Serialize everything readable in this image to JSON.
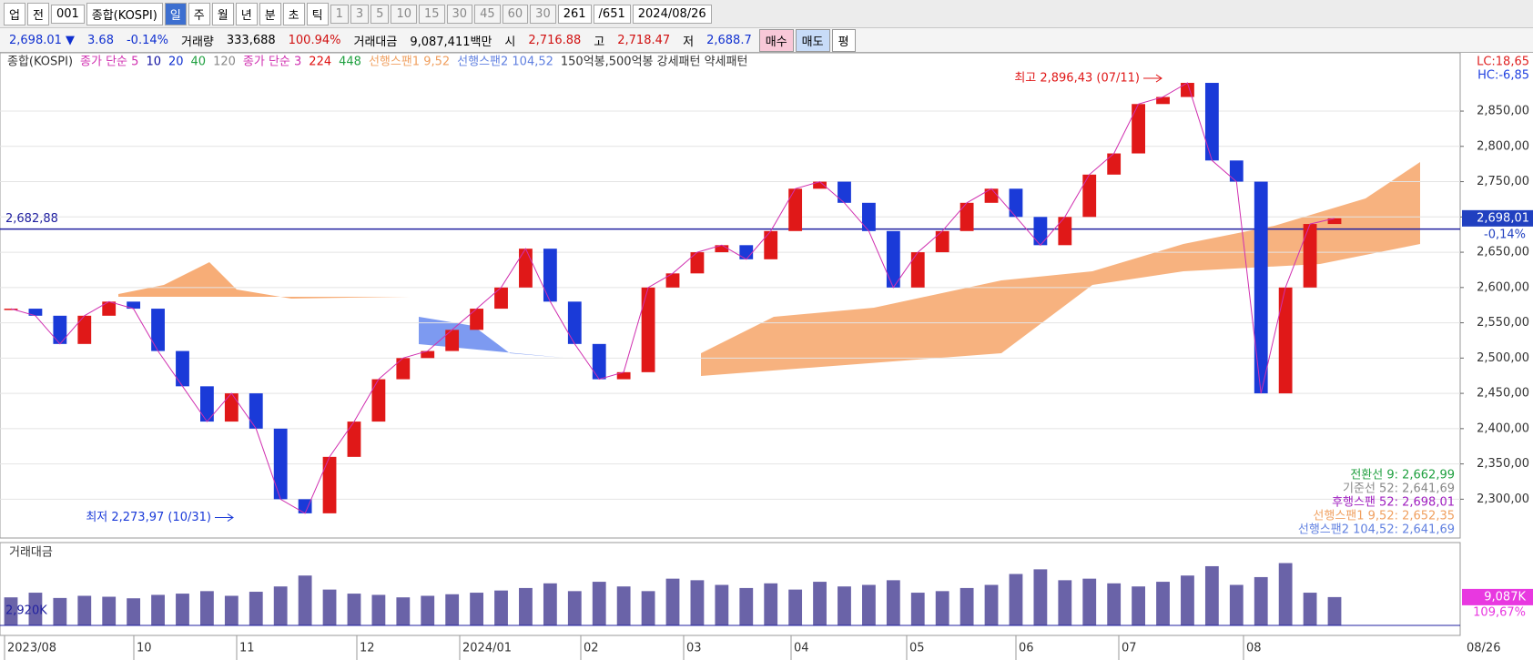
{
  "toolbar": {
    "items": [
      "업",
      "전",
      "001",
      "종합(KOSPI)",
      "일",
      "주",
      "월",
      "년",
      "분",
      "초",
      "틱",
      "1",
      "3",
      "5",
      "10",
      "15",
      "30",
      "45",
      "60",
      "30",
      "261",
      "/651",
      "2024/08/26"
    ]
  },
  "info": [
    {
      "text": "2,698.01 ▼",
      "color": "#1030d0"
    },
    {
      "text": "3.68",
      "color": "#1030d0"
    },
    {
      "text": "-0.14%",
      "color": "#1030d0"
    },
    {
      "text": "거래량",
      "color": "#000000"
    },
    {
      "text": "333,688",
      "color": "#000000"
    },
    {
      "text": "100.94%",
      "color": "#d01010"
    },
    {
      "text": "거래대금",
      "color": "#000000"
    },
    {
      "text": "9,087,411백만",
      "color": "#000000"
    },
    {
      "text": "시",
      "color": "#000000"
    },
    {
      "text": "2,716.88",
      "color": "#d01010"
    },
    {
      "text": "고",
      "color": "#000000"
    },
    {
      "text": "2,718.47",
      "color": "#d01010"
    },
    {
      "text": "저",
      "color": "#000000"
    },
    {
      "text": "2,688.7",
      "color": "#1030d0"
    },
    {
      "text": "매수",
      "color": "#000000"
    },
    {
      "text": "매도",
      "color": "#000000"
    },
    {
      "text": "평",
      "color": "#000000"
    }
  ],
  "legend": [
    {
      "text": "종합(KOSPI)",
      "color": "#333333"
    },
    {
      "text": "종가 단순 5",
      "color": "#d030b0"
    },
    {
      "text": "10",
      "color": "#1010a0"
    },
    {
      "text": "20",
      "color": "#1030d0"
    },
    {
      "text": "40",
      "color": "#20a040"
    },
    {
      "text": "120",
      "color": "#888888"
    },
    {
      "text": "종가 단순 3",
      "color": "#d030b0"
    },
    {
      "text": "224",
      "color": "#e01010"
    },
    {
      "text": "448",
      "color": "#20a040"
    },
    {
      "text": "선행스팬1 9,52",
      "color": "#f0a060"
    },
    {
      "text": "선행스팬2 104,52",
      "color": "#6080e0"
    },
    {
      "text": "150억봉,500억봉 강세패턴  약세패턴",
      "color": "#333333"
    }
  ],
  "chart": {
    "lc": "LC:18,65",
    "hc": "HC:-6,85",
    "ylim": [
      2245,
      2921
    ],
    "yticks": [
      {
        "value": 2300,
        "label": "2,300,00"
      },
      {
        "value": 2350,
        "label": "2,350,00"
      },
      {
        "value": 2400,
        "label": "2,400,00"
      },
      {
        "value": 2450,
        "label": "2,450,00"
      },
      {
        "value": 2500,
        "label": "2,500,00"
      },
      {
        "value": 2550,
        "label": "2,550,00"
      },
      {
        "value": 2600,
        "label": "2,600,00"
      },
      {
        "value": 2650,
        "label": "2,650,00"
      },
      {
        "value": 2700,
        "label": "2,700,00"
      },
      {
        "value": 2750,
        "label": "2,750,00"
      },
      {
        "value": 2800,
        "label": "2,800,00"
      },
      {
        "value": 2850,
        "label": "2,850,00"
      }
    ],
    "closes": [
      2570,
      2560,
      2520,
      2560,
      2580,
      2570,
      2510,
      2460,
      2410,
      2450,
      2400,
      2300,
      2280,
      2360,
      2410,
      2470,
      2500,
      2510,
      2540,
      2570,
      2600,
      2655,
      2580,
      2520,
      2470,
      2480,
      2600,
      2620,
      2650,
      2660,
      2640,
      2680,
      2740,
      2750,
      2720,
      2680,
      2600,
      2650,
      2680,
      2720,
      2740,
      2700,
      2660,
      2700,
      2760,
      2790,
      2860,
      2870,
      2890,
      2780,
      2750,
      2450,
      2600,
      2690,
      2698.01
    ],
    "reference": {
      "value": 2682.88,
      "label": "2,682,88"
    },
    "current": {
      "value": 2698.01,
      "label": "2,698,01",
      "change": "-0,14%"
    },
    "high": {
      "value": 2896.43,
      "label": "최고 2,896,43 (07/11)"
    },
    "low": {
      "value": 2273.97,
      "label": "최저 2,273,97 (10/31)"
    },
    "ichimoku": [
      {
        "text": "전환선 9: 2,662,99",
        "color": "#20a040"
      },
      {
        "text": "기준선 52: 2,641,69",
        "color": "#888888"
      },
      {
        "text": "후행스팬 52: 2,698,01",
        "color": "#a020c0"
      },
      {
        "text": "선행스팬1 9,52: 2,652,35",
        "color": "#f0a060"
      },
      {
        "text": "선행스팬2 104,52: 2,641,69",
        "color": "#6080e0"
      }
    ]
  },
  "volume": {
    "title": "거래대금",
    "left_label": "2,920K",
    "current_label": "9,087K",
    "ratio_label": "109,67%",
    "ylim": [
      0,
      26000
    ],
    "values": [
      9000,
      10500,
      8800,
      9500,
      9200,
      8700,
      9800,
      10200,
      11000,
      9500,
      10800,
      12500,
      16000,
      11500,
      10200,
      9800,
      9000,
      9500,
      10000,
      10500,
      11200,
      12000,
      13500,
      11000,
      14000,
      12500,
      11000,
      15000,
      14500,
      13000,
      12000,
      13500,
      11500,
      14000,
      12500,
      13000,
      14500,
      10500,
      11000,
      12000,
      13000,
      16500,
      18000,
      14500,
      15000,
      13500,
      12500,
      14000,
      16000,
      19000,
      13000,
      15500,
      20000,
      10500,
      9087
    ]
  },
  "xaxis": [
    "2023/08",
    "10",
    "11",
    "12",
    "2024/01",
    "02",
    "03",
    "04",
    "05",
    "06",
    "07",
    "08",
    "08/26"
  ]
}
